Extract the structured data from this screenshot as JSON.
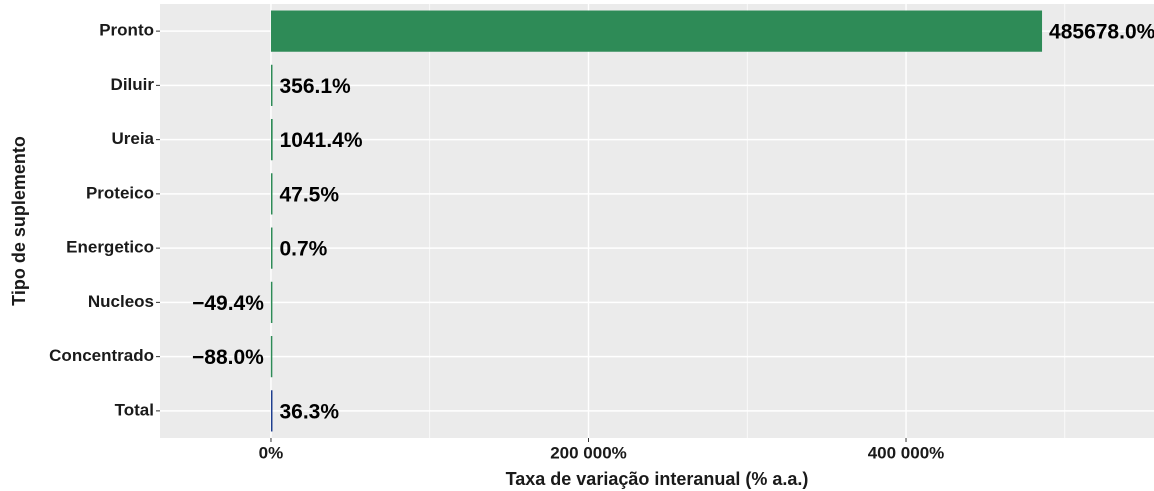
{
  "chart_data": {
    "type": "barh",
    "categories": [
      "Pronto",
      "Diluir",
      "Ureia",
      "Proteico",
      "Energetico",
      "Nucleos",
      "Concentrado",
      "Total"
    ],
    "values": [
      485678.0,
      356.1,
      1041.4,
      47.5,
      0.7,
      -49.4,
      -88.0,
      36.3
    ],
    "value_labels": [
      "485678.0%",
      "356.1%",
      "1041.4%",
      "47.5%",
      "0.7%",
      "−49.4%",
      "−88.0%",
      "36.3%"
    ],
    "colors": [
      "#2e8b57",
      "#2e8b57",
      "#2e8b57",
      "#2e8b57",
      "#2e8b57",
      "#2e8b57",
      "#2e8b57",
      "#1f3f8f"
    ],
    "xlim": [
      -69900,
      556200
    ],
    "xticks": [
      {
        "value": 0,
        "label": "0%"
      },
      {
        "value": 200000,
        "label": "200 000%"
      },
      {
        "value": 400000,
        "label": "400 000%"
      }
    ],
    "minor_xticks": [
      100000,
      300000,
      500000
    ],
    "xlabel": "Taxa de variação interanual (% a.a.)",
    "ylabel": "Tipo de suplemento",
    "grid": true
  }
}
